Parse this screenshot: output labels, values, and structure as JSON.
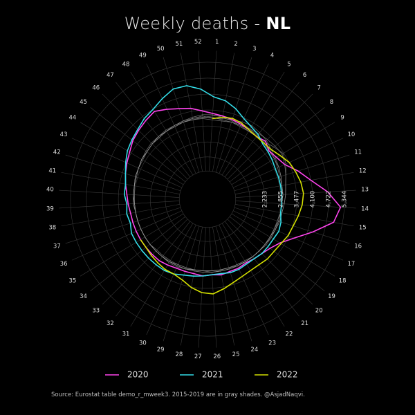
{
  "title": {
    "prefix": "Weekly deaths - ",
    "country": "NL"
  },
  "caption": "Source: Eurostat table demo_r_mweek3. 2015-2019 are in gray shades. @AsjadNaqvi.",
  "colors": {
    "background": "#000000",
    "grid": "#3a3a3a",
    "text": "#dddddd",
    "historic": "#9a9a9a"
  },
  "chart_data": {
    "type": "line",
    "subtype": "polar",
    "theta": "week",
    "weeks": [
      1,
      2,
      3,
      4,
      5,
      6,
      7,
      8,
      9,
      10,
      11,
      12,
      13,
      14,
      15,
      16,
      17,
      18,
      19,
      20,
      21,
      22,
      23,
      24,
      25,
      26,
      27,
      28,
      29,
      30,
      31,
      32,
      33,
      34,
      35,
      36,
      37,
      38,
      39,
      40,
      41,
      42,
      43,
      44,
      45,
      46,
      47,
      48,
      49,
      50,
      51,
      52
    ],
    "radial_ticks": [
      "2,233",
      "2,855",
      "3,477",
      "4,100",
      "4,722",
      "5,344"
    ],
    "radial_tick_values": [
      2233,
      2855,
      3477,
      4100,
      4722,
      5344
    ],
    "r_range": [
      0,
      5800
    ],
    "grid": true,
    "legend_position": "bottom",
    "series": [
      {
        "name": "2020",
        "color": "#ff44ee",
        "values": [
          3350,
          3300,
          3250,
          3200,
          3150,
          3100,
          3200,
          3050,
          3150,
          3300,
          3700,
          4100,
          4700,
          5200,
          5000,
          4300,
          3700,
          3300,
          3100,
          3000,
          2950,
          2900,
          2950,
          2950,
          3000,
          2950,
          3000,
          2950,
          2950,
          2950,
          3000,
          3050,
          3050,
          3050,
          3050,
          3050,
          3050,
          3050,
          3100,
          3150,
          3250,
          3350,
          3450,
          3550,
          3700,
          3800,
          3900,
          4000,
          3850,
          3700,
          3600,
          3450
        ]
      },
      {
        "name": "2021",
        "color": "#33dde8",
        "values": [
          4000,
          3900,
          3700,
          3450,
          3300,
          3200,
          3050,
          3000,
          2950,
          2900,
          2900,
          2900,
          2900,
          2900,
          2900,
          3000,
          3050,
          3000,
          3000,
          3000,
          2950,
          2950,
          3000,
          3000,
          2950,
          2950,
          3000,
          3050,
          3100,
          3200,
          3250,
          3250,
          3250,
          3250,
          3250,
          3250,
          3150,
          3200,
          3150,
          3250,
          3250,
          3350,
          3500,
          3650,
          3750,
          3850,
          4000,
          4100,
          4300,
          4500,
          4500,
          4300
        ]
      },
      {
        "name": "2022",
        "color": "#d4e000",
        "values": [
          3150,
          3250,
          3300,
          3250,
          3150,
          3100,
          3100,
          3150,
          3300,
          3500,
          3600,
          3700,
          3750,
          3700,
          3600,
          3500,
          3450,
          3350,
          3300,
          3300,
          3250,
          3250,
          3300,
          3400,
          3550,
          3700,
          3650,
          3500,
          3300,
          3200,
          3200,
          3150,
          3100,
          3050,
          3050
        ]
      },
      {
        "name": "",
        "color": "#9a9a9a",
        "values": [
          3300,
          3250,
          3200,
          3150,
          3100,
          3100,
          3150,
          3300,
          3450,
          3350,
          3200,
          3100,
          3050,
          3000,
          2950,
          2950,
          2900,
          2900,
          2900,
          2850,
          2850,
          2850,
          2850,
          2850,
          2850,
          2850,
          2800,
          2800,
          2800,
          2800,
          2800,
          2800,
          2800,
          2850,
          2850,
          2850,
          2850,
          2850,
          2850,
          2850,
          2900,
          2900,
          2950,
          2950,
          3000,
          3050,
          3100,
          3100,
          3150,
          3200,
          3250,
          3300
        ]
      },
      {
        "name": "",
        "color": "#9a9a9a",
        "values": [
          3150,
          3200,
          3250,
          3300,
          3350,
          3300,
          3250,
          3150,
          3100,
          3050,
          3000,
          2950,
          2950,
          2900,
          2900,
          2900,
          2850,
          2850,
          2850,
          2850,
          2850,
          2800,
          2800,
          2800,
          2800,
          2800,
          2800,
          2800,
          2850,
          2850,
          2850,
          2850,
          2850,
          2850,
          2850,
          2850,
          2850,
          2850,
          2850,
          2900,
          2900,
          2950,
          2950,
          3000,
          3050,
          3100,
          3100,
          3150,
          3150,
          3200,
          3200,
          3250
        ]
      },
      {
        "name": "",
        "color": "#9a9a9a",
        "values": [
          3100,
          3100,
          3150,
          3150,
          3200,
          3250,
          3300,
          3350,
          3400,
          3300,
          3200,
          3100,
          3050,
          3000,
          2950,
          2950,
          2900,
          2900,
          2850,
          2850,
          2850,
          2850,
          2800,
          2800,
          2800,
          2800,
          2800,
          2800,
          2800,
          2800,
          2850,
          2850,
          2850,
          2850,
          2850,
          2850,
          2850,
          2850,
          2900,
          2900,
          2900,
          2950,
          2950,
          3000,
          3000,
          3050,
          3050,
          3100,
          3100,
          3150,
          3150,
          3150
        ]
      },
      {
        "name": "",
        "color": "#9a9a9a",
        "values": [
          3200,
          3150,
          3150,
          3100,
          3100,
          3100,
          3100,
          3100,
          3050,
          3050,
          3000,
          2950,
          2950,
          2900,
          2900,
          2900,
          2900,
          2850,
          2850,
          2850,
          2850,
          2850,
          2850,
          2850,
          2850,
          2850,
          2850,
          2850,
          2850,
          2900,
          2900,
          2850,
          2850,
          2850,
          2850,
          2850,
          2850,
          2850,
          2900,
          2900,
          2900,
          2950,
          2950,
          3000,
          3000,
          3050,
          3050,
          3100,
          3100,
          3150,
          3150,
          3200
        ]
      },
      {
        "name": "",
        "color": "#9a9a9a",
        "values": [
          3250,
          3300,
          3300,
          3250,
          3200,
          3150,
          3100,
          3050,
          3050,
          3000,
          2950,
          2950,
          2900,
          2900,
          2900,
          2850,
          2850,
          2850,
          2850,
          2850,
          2850,
          2850,
          2850,
          2800,
          2800,
          2800,
          2800,
          2800,
          2850,
          2850,
          2850,
          2850,
          2850,
          2850,
          2850,
          2850,
          2850,
          2850,
          2850,
          2900,
          2900,
          2950,
          2950,
          3000,
          3000,
          3050,
          3100,
          3100,
          3150,
          3150,
          3200,
          3200
        ]
      }
    ]
  }
}
